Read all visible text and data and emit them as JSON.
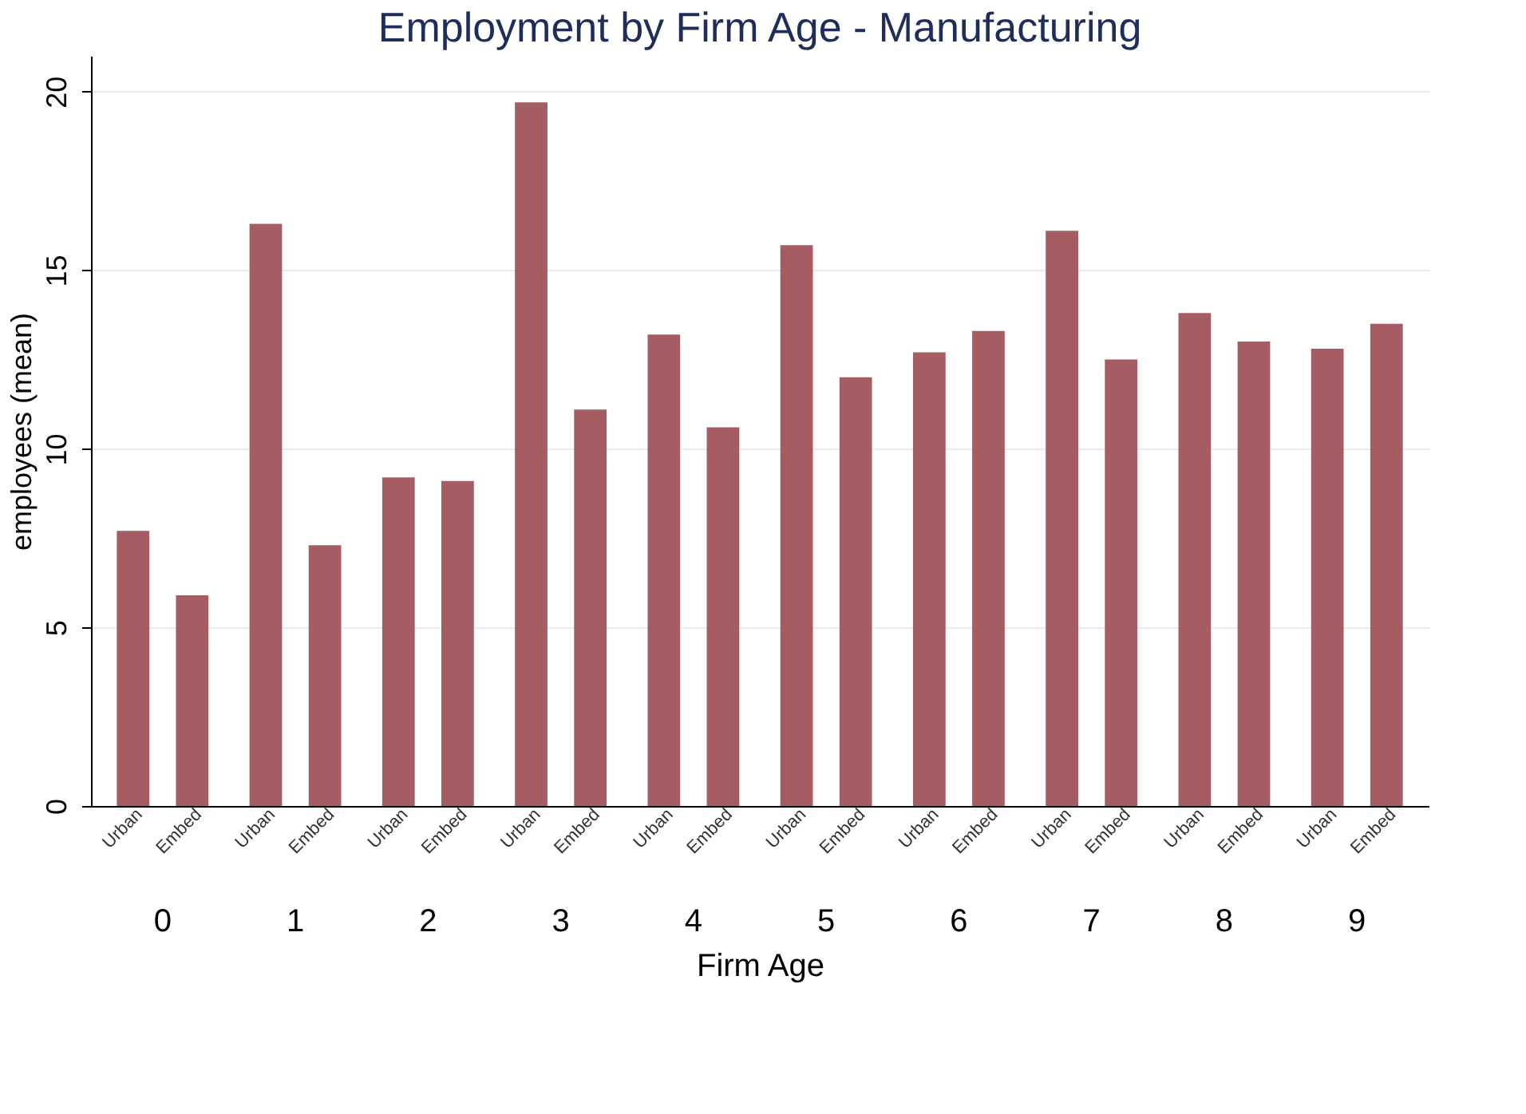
{
  "chart_data": {
    "type": "bar",
    "title": "Employment by Firm Age - Manufacturing",
    "xlabel": "Firm Age",
    "ylabel": "employees (mean)",
    "categories": [
      "0",
      "1",
      "2",
      "3",
      "4",
      "5",
      "6",
      "7",
      "8",
      "9"
    ],
    "series": [
      {
        "name": "Urban",
        "color": "#a65c63",
        "values": [
          7.7,
          16.3,
          9.2,
          19.7,
          13.2,
          15.7,
          12.7,
          16.1,
          13.8,
          12.8
        ]
      },
      {
        "name": "Embed",
        "color": "#a65c63",
        "values": [
          5.9,
          7.3,
          9.1,
          11.1,
          10.6,
          12.0,
          13.3,
          12.5,
          13.0,
          13.5
        ]
      }
    ],
    "ylim": [
      0,
      21
    ],
    "yticks": [
      0,
      5,
      10,
      15,
      20
    ],
    "grid": "y"
  }
}
